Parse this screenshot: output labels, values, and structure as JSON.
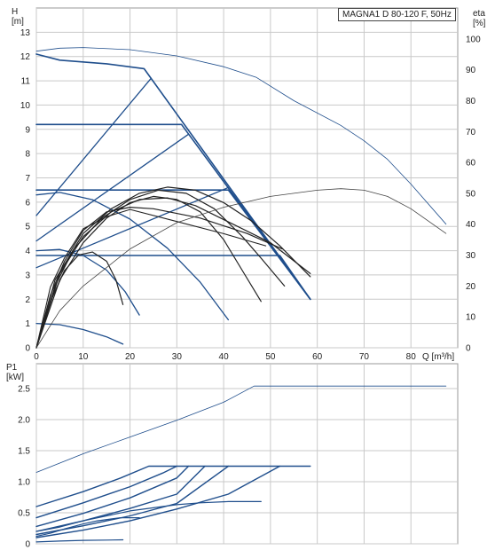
{
  "chart_data": [
    {
      "type": "line",
      "title": "MAGNA1 D 80-120 F, 50Hz",
      "x_axis": {
        "label": "Q [m³/h]",
        "range": [
          0,
          90
        ],
        "ticks": [
          0,
          10,
          20,
          30,
          40,
          50,
          60,
          70,
          80
        ]
      },
      "y_axis_left": {
        "label_top": "H",
        "label_unit": "[m]",
        "range": [
          0,
          14
        ],
        "ticks": [
          0,
          1,
          2,
          3,
          4,
          5,
          6,
          7,
          8,
          9,
          10,
          11,
          12,
          13
        ]
      },
      "y_axis_right": {
        "label_top": "eta",
        "label_unit": "[%]",
        "range": [
          0,
          110
        ],
        "ticks": [
          0,
          10,
          20,
          30,
          40,
          50,
          60,
          70,
          80,
          90,
          100
        ]
      },
      "grid": true,
      "series": [
        {
          "axis": "H",
          "color": "#1f4e8c",
          "width": 1.6,
          "points": [
            [
              0,
              12.1
            ],
            [
              5,
              11.85
            ],
            [
              15,
              11.7
            ],
            [
              23,
              11.5
            ],
            [
              58.5,
              2.0
            ]
          ]
        },
        {
          "axis": "H",
          "color": "#1f4e8c",
          "width": 1.6,
          "points": [
            [
              0,
              9.2
            ],
            [
              31,
              9.2
            ],
            [
              58.5,
              2.0
            ]
          ]
        },
        {
          "axis": "H",
          "color": "#1f4e8c",
          "width": 1.6,
          "points": [
            [
              0,
              6.5
            ],
            [
              41,
              6.5
            ],
            [
              58.5,
              2.0
            ]
          ]
        },
        {
          "axis": "H",
          "color": "#1f4e8c",
          "width": 1.6,
          "points": [
            [
              0,
              3.8
            ],
            [
              52,
              3.8
            ],
            [
              58.5,
              2.0
            ]
          ]
        },
        {
          "axis": "H",
          "color": "#1f4e8c",
          "width": 1.3,
          "points": [
            [
              0,
              5.45
            ],
            [
              24.5,
              11.1
            ]
          ]
        },
        {
          "axis": "H",
          "color": "#1f4e8c",
          "width": 1.3,
          "points": [
            [
              0,
              4.4
            ],
            [
              32.5,
              8.8
            ]
          ]
        },
        {
          "axis": "H",
          "color": "#1f4e8c",
          "width": 1.3,
          "points": [
            [
              0,
              3.3
            ],
            [
              41,
              6.6
            ]
          ]
        },
        {
          "axis": "H",
          "color": "#1f4e8c",
          "width": 1.3,
          "points": [
            [
              0,
              6.3
            ],
            [
              5,
              6.4
            ],
            [
              12,
              6.1
            ],
            [
              20,
              5.3
            ],
            [
              28,
              4.1
            ],
            [
              35,
              2.7
            ],
            [
              41,
              1.15
            ]
          ]
        },
        {
          "axis": "H",
          "color": "#1f4e8c",
          "width": 1.3,
          "points": [
            [
              0,
              4.0
            ],
            [
              5,
              4.05
            ],
            [
              10,
              3.8
            ],
            [
              15,
              3.2
            ],
            [
              19,
              2.3
            ],
            [
              22,
              1.35
            ]
          ]
        },
        {
          "axis": "H",
          "color": "#1f4e8c",
          "width": 1.3,
          "points": [
            [
              0,
              1.0
            ],
            [
              5,
              0.95
            ],
            [
              10,
              0.75
            ],
            [
              15,
              0.45
            ],
            [
              18.5,
              0.15
            ]
          ]
        },
        {
          "axis": "eta",
          "color": "#222222",
          "width": 1.2,
          "points": [
            [
              0,
              0
            ],
            [
              5,
              22
            ],
            [
              10,
              34
            ],
            [
              15,
              42
            ],
            [
              20,
              47
            ],
            [
              25,
              49
            ],
            [
              30,
              48
            ],
            [
              35,
              44
            ],
            [
              40,
              35
            ],
            [
              44,
              25
            ],
            [
              48,
              15
            ]
          ]
        },
        {
          "axis": "eta",
          "color": "#222222",
          "width": 1.2,
          "points": [
            [
              0,
              0
            ],
            [
              4,
              20
            ],
            [
              8,
              32
            ],
            [
              14,
              42
            ],
            [
              20,
              48
            ],
            [
              26,
              51
            ],
            [
              32,
              50
            ],
            [
              38,
              45
            ],
            [
              44,
              36
            ],
            [
              48,
              29
            ],
            [
              53,
              20
            ]
          ]
        },
        {
          "axis": "eta",
          "color": "#222222",
          "width": 1.2,
          "points": [
            [
              0,
              0
            ],
            [
              4,
              22
            ],
            [
              10,
              37
            ],
            [
              16,
              45
            ],
            [
              22,
              50
            ],
            [
              28,
              52
            ],
            [
              34,
              51
            ],
            [
              40,
              47
            ],
            [
              46,
              41
            ],
            [
              52,
              33
            ],
            [
              58.5,
              23
            ]
          ]
        },
        {
          "axis": "eta",
          "color": "#222222",
          "width": 1.2,
          "points": [
            [
              0,
              0
            ],
            [
              3,
              15
            ],
            [
              6,
              25
            ],
            [
              9,
              30
            ],
            [
              12,
              31
            ],
            [
              15,
              28
            ],
            [
              17,
              22
            ],
            [
              18.5,
              14
            ]
          ]
        },
        {
          "axis": "eta",
          "color": "#222222",
          "width": 1.2,
          "points": [
            [
              0,
              0
            ],
            [
              3,
              17
            ],
            [
              6,
              28
            ],
            [
              10,
              38
            ],
            [
              15,
              44
            ],
            [
              20,
              45.5
            ],
            [
              25,
              45
            ],
            [
              35,
              42
            ],
            [
              45,
              37
            ],
            [
              52.5,
              32
            ]
          ]
        },
        {
          "axis": "eta",
          "color": "#222222",
          "width": 1.2,
          "points": [
            [
              0,
              0
            ],
            [
              5,
              24
            ],
            [
              10,
              36
            ],
            [
              16,
              44
            ],
            [
              22,
              48
            ],
            [
              28,
              48.5
            ],
            [
              34,
              46
            ],
            [
              42,
              40
            ],
            [
              50,
              34
            ],
            [
              58.5,
              24
            ]
          ]
        },
        {
          "axis": "H",
          "color": "#222222",
          "width": 1.1,
          "points": [
            [
              0,
              0
            ],
            [
              3,
              2.5
            ],
            [
              6,
              3.7
            ],
            [
              10,
              4.9
            ],
            [
              15,
              5.4
            ],
            [
              20,
              5.7
            ],
            [
              30,
              5.2
            ],
            [
              40,
              4.7
            ],
            [
              49,
              4.2
            ]
          ]
        },
        {
          "axis": "eta",
          "color": "#1f4e8c",
          "width": 0.8,
          "points": [
            [
              0,
              96
            ],
            [
              5,
              97
            ],
            [
              10,
              97.2
            ],
            [
              20,
              96.5
            ],
            [
              30,
              94.5
            ],
            [
              40,
              91
            ],
            [
              47,
              87.5
            ],
            [
              55,
              80
            ],
            [
              65,
              72
            ],
            [
              70,
              67
            ],
            [
              75,
              61
            ],
            [
              80,
              53
            ],
            [
              87.5,
              40
            ]
          ]
        },
        {
          "axis": "eta",
          "color": "#444444",
          "width": 0.8,
          "points": [
            [
              0,
              0
            ],
            [
              5,
              12
            ],
            [
              10,
              20
            ],
            [
              20,
              32
            ],
            [
              30,
              40.5
            ],
            [
              40,
              45.5
            ],
            [
              50,
              49
            ],
            [
              60,
              51
            ],
            [
              65,
              51.5
            ],
            [
              70,
              51
            ],
            [
              75,
              49
            ],
            [
              80,
              45
            ],
            [
              87.5,
              37
            ]
          ]
        }
      ]
    },
    {
      "type": "line",
      "x_axis": {
        "range": [
          0,
          90
        ],
        "ticks": [
          0,
          10,
          20,
          30,
          40,
          50,
          60,
          70,
          80
        ]
      },
      "y_axis_left": {
        "label_top": "P1",
        "label_unit": "[kW]",
        "range": [
          0,
          2.9
        ],
        "ticks": [
          0,
          0.5,
          1.0,
          1.5,
          2.0,
          2.5
        ],
        "tick_labels": [
          "0",
          "0.5",
          "1.0",
          "1.5",
          "2.0",
          "2.5"
        ]
      },
      "grid": true,
      "series": [
        {
          "color": "#1f4e8c",
          "width": 1.4,
          "points": [
            [
              0,
              0.6
            ],
            [
              10,
              0.84
            ],
            [
              18,
              1.06
            ],
            [
              24,
              1.25
            ],
            [
              58.5,
              1.25
            ]
          ]
        },
        {
          "color": "#1f4e8c",
          "width": 1.4,
          "points": [
            [
              0,
              0.42
            ],
            [
              10,
              0.66
            ],
            [
              20,
              0.92
            ],
            [
              27,
              1.14
            ],
            [
              30,
              1.25
            ]
          ]
        },
        {
          "color": "#1f4e8c",
          "width": 1.4,
          "points": [
            [
              0,
              0.28
            ],
            [
              10,
              0.49
            ],
            [
              20,
              0.74
            ],
            [
              30,
              1.06
            ],
            [
              32.5,
              1.25
            ]
          ]
        },
        {
          "color": "#1f4e8c",
          "width": 1.4,
          "points": [
            [
              0,
              0.2
            ],
            [
              10,
              0.37
            ],
            [
              20,
              0.57
            ],
            [
              30,
              0.8
            ],
            [
              36,
              1.25
            ]
          ]
        },
        {
          "color": "#1f4e8c",
          "width": 1.4,
          "points": [
            [
              0,
              0.15
            ],
            [
              10,
              0.29
            ],
            [
              20,
              0.45
            ],
            [
              30,
              0.65
            ],
            [
              41,
              1.25
            ]
          ]
        },
        {
          "color": "#1f4e8c",
          "width": 1.4,
          "points": [
            [
              0,
              0.1
            ],
            [
              10,
              0.22
            ],
            [
              20,
              0.37
            ],
            [
              30,
              0.56
            ],
            [
              41,
              0.8
            ],
            [
              52,
              1.25
            ]
          ]
        },
        {
          "color": "#1f4e8c",
          "width": 1.2,
          "points": [
            [
              0,
              0.2
            ],
            [
              5,
              0.27
            ],
            [
              10,
              0.37
            ],
            [
              15,
              0.45
            ],
            [
              20,
              0.53
            ],
            [
              25,
              0.58
            ],
            [
              30,
              0.63
            ],
            [
              35,
              0.66
            ],
            [
              41,
              0.68
            ],
            [
              48,
              0.68
            ]
          ]
        },
        {
          "color": "#1f4e8c",
          "width": 1.2,
          "points": [
            [
              0,
              0.12
            ],
            [
              3,
              0.17
            ],
            [
              6,
              0.24
            ],
            [
              10,
              0.32
            ],
            [
              13,
              0.37
            ],
            [
              16,
              0.4
            ],
            [
              18,
              0.42
            ],
            [
              22,
              0.42
            ]
          ]
        },
        {
          "color": "#1f4e8c",
          "width": 1.2,
          "points": [
            [
              0,
              0.03
            ],
            [
              5,
              0.045
            ],
            [
              10,
              0.055
            ],
            [
              15,
              0.06
            ],
            [
              18.5,
              0.065
            ]
          ]
        },
        {
          "color": "#1f4e8c",
          "width": 0.8,
          "points": [
            [
              0,
              1.15
            ],
            [
              10,
              1.45
            ],
            [
              20,
              1.72
            ],
            [
              30,
              1.99
            ],
            [
              40,
              2.28
            ],
            [
              46.5,
              2.54
            ],
            [
              87.5,
              2.54
            ]
          ]
        }
      ]
    }
  ]
}
